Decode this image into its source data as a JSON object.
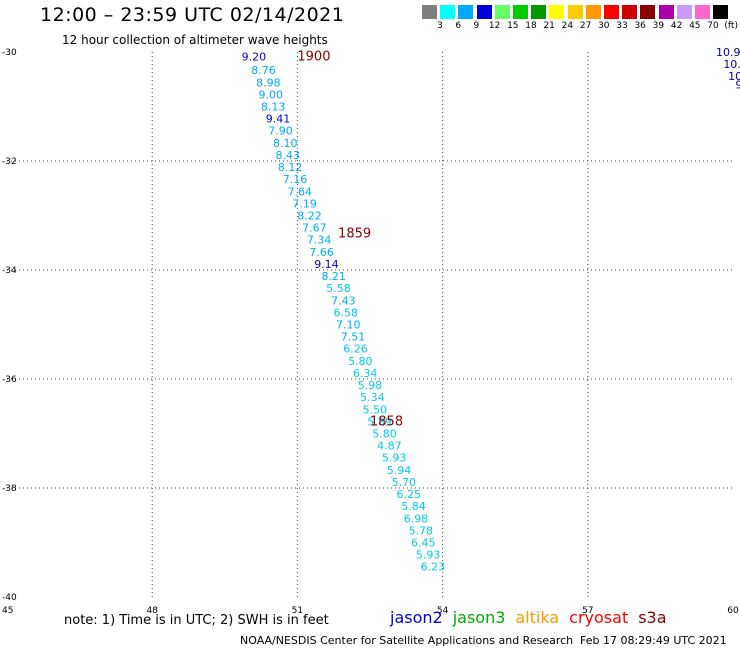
{
  "header": {
    "title": "12:00 – 23:59 UTC 02/14/2021",
    "subtitle": "12 hour collection of altimeter wave heights"
  },
  "legend": {
    "colors": [
      "#7f7f7f",
      "#00ffff",
      "#00aaff",
      "#0000dd",
      "#66ff66",
      "#00cc00",
      "#009900",
      "#ffff00",
      "#ffcc00",
      "#ff9900",
      "#ff0000",
      "#cc0000",
      "#880000",
      "#aa00aa",
      "#cc99ff",
      "#ff66cc",
      "#000000"
    ],
    "labels": [
      "3",
      "6",
      "9",
      "12",
      "15",
      "18",
      "21",
      "24",
      "27",
      "30",
      "33",
      "36",
      "39",
      "42",
      "45",
      "70",
      "(ft)"
    ]
  },
  "map": {
    "lon_range": [
      45,
      60
    ],
    "lat_range": [
      -40,
      -30
    ],
    "lon_ticks": [
      "45",
      "48",
      "51",
      "54",
      "57",
      "60"
    ],
    "lat_ticks": [
      "-30",
      "-32",
      "-34",
      "-36",
      "-38",
      "-40"
    ],
    "grid": "dotted",
    "time_labels": [
      {
        "text": "1900",
        "lon": 51.0,
        "lat": -30.08
      },
      {
        "text": "1859",
        "lon": 51.84,
        "lat": -33.33
      },
      {
        "text": "1858",
        "lon": 52.5,
        "lat": -36.78
      }
    ],
    "readings": [
      {
        "text": "9.20",
        "lon": 50.1,
        "lat": -30.08,
        "color": "#0000dd"
      },
      {
        "text": "8.76",
        "lon": 50.3,
        "lat": -30.33,
        "color": "#00aaff"
      },
      {
        "text": "8.98",
        "lon": 50.4,
        "lat": -30.56,
        "color": "#00aaff"
      },
      {
        "text": "9.00",
        "lon": 50.45,
        "lat": -30.78,
        "color": "#00aaff"
      },
      {
        "text": "8.13",
        "lon": 50.5,
        "lat": -31.0,
        "color": "#00aaff"
      },
      {
        "text": "9.41",
        "lon": 50.6,
        "lat": -31.22,
        "color": "#0000dd"
      },
      {
        "text": "7.90",
        "lon": 50.65,
        "lat": -31.44,
        "color": "#00aaff"
      },
      {
        "text": "8.10",
        "lon": 50.75,
        "lat": -31.67,
        "color": "#00aaff"
      },
      {
        "text": "8.43",
        "lon": 50.8,
        "lat": -31.89,
        "color": "#00aaff"
      },
      {
        "text": "8.12",
        "lon": 50.85,
        "lat": -32.11,
        "color": "#00aaff"
      },
      {
        "text": "7.16",
        "lon": 50.95,
        "lat": -32.33,
        "color": "#00aaff"
      },
      {
        "text": "7.64",
        "lon": 51.05,
        "lat": -32.56,
        "color": "#00aaff"
      },
      {
        "text": "7.19",
        "lon": 51.15,
        "lat": -32.78,
        "color": "#00aaff"
      },
      {
        "text": "8.22",
        "lon": 51.25,
        "lat": -33.0,
        "color": "#00aaff"
      },
      {
        "text": "7.67",
        "lon": 51.35,
        "lat": -33.22,
        "color": "#00aaff"
      },
      {
        "text": "7.34",
        "lon": 51.45,
        "lat": -33.44,
        "color": "#00aaff"
      },
      {
        "text": "7.66",
        "lon": 51.5,
        "lat": -33.67,
        "color": "#00aaff"
      },
      {
        "text": "9.14",
        "lon": 51.6,
        "lat": -33.89,
        "color": "#0000dd"
      },
      {
        "text": "8.21",
        "lon": 51.75,
        "lat": -34.11,
        "color": "#00aaff"
      },
      {
        "text": "5.58",
        "lon": 51.85,
        "lat": -34.33,
        "color": "#00ccee"
      },
      {
        "text": "7.43",
        "lon": 51.95,
        "lat": -34.56,
        "color": "#00aaff"
      },
      {
        "text": "6.58",
        "lon": 52.0,
        "lat": -34.78,
        "color": "#00ccee"
      },
      {
        "text": "7.10",
        "lon": 52.05,
        "lat": -35.0,
        "color": "#00aaff"
      },
      {
        "text": "7.51",
        "lon": 52.15,
        "lat": -35.22,
        "color": "#00aaff"
      },
      {
        "text": "6.26",
        "lon": 52.2,
        "lat": -35.44,
        "color": "#00ccee"
      },
      {
        "text": "5.80",
        "lon": 52.3,
        "lat": -35.67,
        "color": "#00ccee"
      },
      {
        "text": "6.34",
        "lon": 52.4,
        "lat": -35.89,
        "color": "#00ccee"
      },
      {
        "text": "5.98",
        "lon": 52.5,
        "lat": -36.11,
        "color": "#00ccee"
      },
      {
        "text": "5.34",
        "lon": 52.55,
        "lat": -36.33,
        "color": "#00ccee"
      },
      {
        "text": "5.50",
        "lon": 52.6,
        "lat": -36.56,
        "color": "#00ccee"
      },
      {
        "text": "5.89",
        "lon": 52.7,
        "lat": -36.78,
        "color": "#00ccee"
      },
      {
        "text": "5.80",
        "lon": 52.8,
        "lat": -37.0,
        "color": "#00ccee"
      },
      {
        "text": "4.87",
        "lon": 52.9,
        "lat": -37.22,
        "color": "#00ccee"
      },
      {
        "text": "5.93",
        "lon": 53.0,
        "lat": -37.44,
        "color": "#00ccee"
      },
      {
        "text": "5.94",
        "lon": 53.1,
        "lat": -37.67,
        "color": "#00ccee"
      },
      {
        "text": "5.70",
        "lon": 53.2,
        "lat": -37.89,
        "color": "#00ccee"
      },
      {
        "text": "6.25",
        "lon": 53.3,
        "lat": -38.11,
        "color": "#00ccee"
      },
      {
        "text": "5.84",
        "lon": 53.4,
        "lat": -38.33,
        "color": "#00ccee"
      },
      {
        "text": "6.98",
        "lon": 53.45,
        "lat": -38.56,
        "color": "#00ccee"
      },
      {
        "text": "5.78",
        "lon": 53.55,
        "lat": -38.78,
        "color": "#00ccee"
      },
      {
        "text": "6.45",
        "lon": 53.6,
        "lat": -39.0,
        "color": "#00ccee"
      },
      {
        "text": "5.93",
        "lon": 53.7,
        "lat": -39.22,
        "color": "#00ccee"
      },
      {
        "text": "6.23",
        "lon": 53.8,
        "lat": -39.44,
        "color": "#00ccee"
      },
      {
        "text": "10.9",
        "lon": 59.65,
        "lat": -30.0,
        "color": "#0000aa"
      },
      {
        "text": "10.",
        "lon": 59.8,
        "lat": -30.22,
        "color": "#0000aa"
      },
      {
        "text": "10",
        "lon": 59.9,
        "lat": -30.44,
        "color": "#0000aa"
      },
      {
        "text": "9",
        "lon": 60.05,
        "lat": -30.6,
        "color": "#0000aa"
      }
    ]
  },
  "footer": {
    "note": "note:  1) Time is in UTC;  2) SWH is in feet",
    "satellites": [
      {
        "name": "jason2",
        "color": "#0000dd"
      },
      {
        "name": "jason3",
        "color": "#00aa00"
      },
      {
        "name": "altika",
        "color": "#ff9900"
      },
      {
        "name": "cryosat",
        "color": "#ff0000"
      },
      {
        "name": "s3a",
        "color": "#880000"
      }
    ],
    "credit": "NOAA/NESDIS Center for Satellite Applications and Research",
    "timestamp": "Feb 17 08:29:49 UTC 2021"
  }
}
